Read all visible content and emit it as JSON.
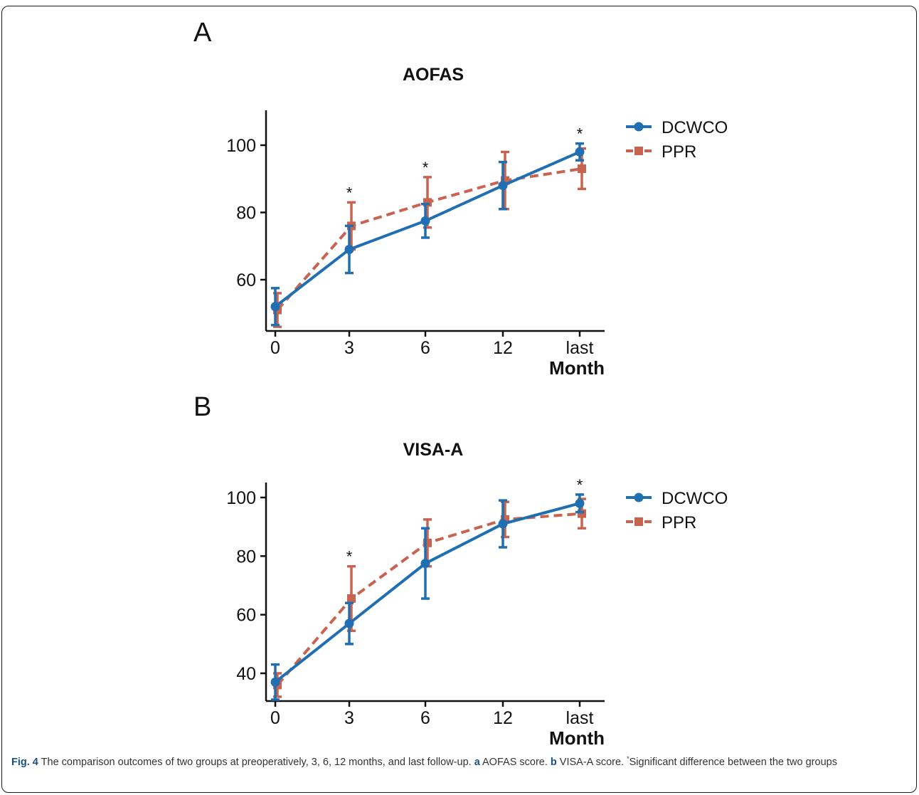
{
  "figure": {
    "caption": {
      "label": "Fig. 4",
      "part1": " The comparison outcomes of two groups at preoperatively, 3, 6, 12 months, and last follow-up. ",
      "a_label": "a",
      "a_text": " AOFAS score. ",
      "b_label": "b",
      "b_text": " VISA-A score. ",
      "star": "*",
      "note": "Significant difference between the two groups"
    }
  },
  "colors": {
    "DCWCO": "#1f6fb2",
    "PPR": "#c8634f"
  },
  "chart_data": [
    {
      "panel": "A",
      "type": "line",
      "title": "AOFAS",
      "xlabel": "Month",
      "ylabel": "",
      "categories": [
        "0",
        "3",
        "6",
        "12",
        "last"
      ],
      "ylim": [
        45,
        110
      ],
      "yticks": [
        60,
        80,
        100
      ],
      "series": [
        {
          "name": "DCWCO",
          "values": [
            52,
            69,
            77.5,
            88,
            98
          ],
          "err": [
            5.5,
            7,
            5,
            7,
            2.5
          ],
          "style": "solid",
          "marker": "circle"
        },
        {
          "name": "PPR",
          "values": [
            51,
            76,
            83,
            89.5,
            93
          ],
          "err": [
            5,
            7,
            7.5,
            8.5,
            6
          ],
          "style": "dashed",
          "marker": "square"
        }
      ],
      "significance": [
        "",
        "*",
        "*",
        "",
        "*"
      ],
      "legend": "top-right"
    },
    {
      "panel": "B",
      "type": "line",
      "title": "VISA-A",
      "xlabel": "Month",
      "ylabel": "",
      "categories": [
        "0",
        "3",
        "6",
        "12",
        "last"
      ],
      "ylim": [
        30,
        106
      ],
      "yticks": [
        40,
        60,
        80,
        100
      ],
      "series": [
        {
          "name": "DCWCO",
          "values": [
            37,
            57,
            77.5,
            91,
            98
          ],
          "err": [
            6,
            7,
            12,
            8,
            3
          ],
          "style": "solid",
          "marker": "circle"
        },
        {
          "name": "PPR",
          "values": [
            36,
            65.5,
            84.5,
            92.5,
            94.5
          ],
          "err": [
            4,
            11,
            8,
            6,
            5
          ],
          "style": "dashed",
          "marker": "square"
        }
      ],
      "significance": [
        "",
        "*",
        "",
        "",
        "*"
      ],
      "legend": "top-right"
    }
  ]
}
